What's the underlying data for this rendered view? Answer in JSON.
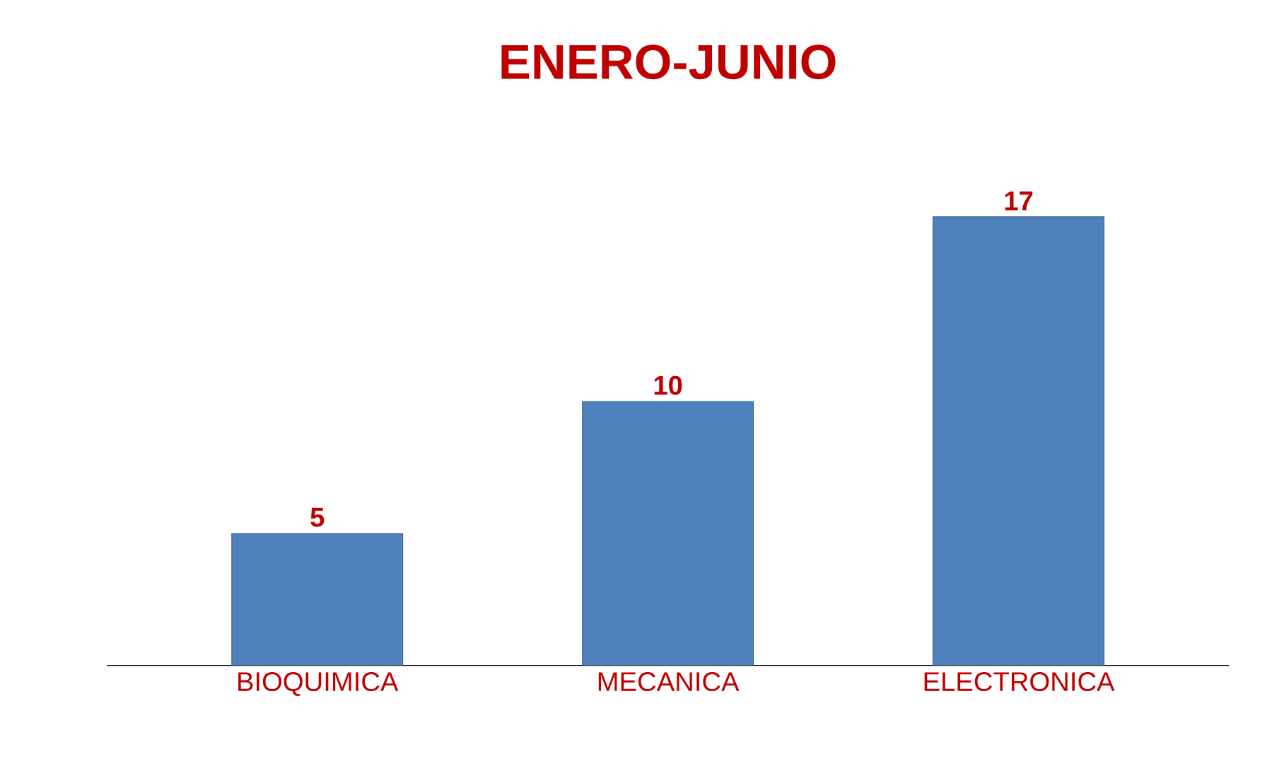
{
  "chart_data": {
    "type": "bar",
    "title": "ENERO-JUNIO",
    "categories": [
      "BIOQUIMICA",
      "MECANICA",
      "ELECTRONICA"
    ],
    "values": [
      5,
      10,
      17
    ],
    "color": "#4f81bd",
    "data_labels": true
  }
}
